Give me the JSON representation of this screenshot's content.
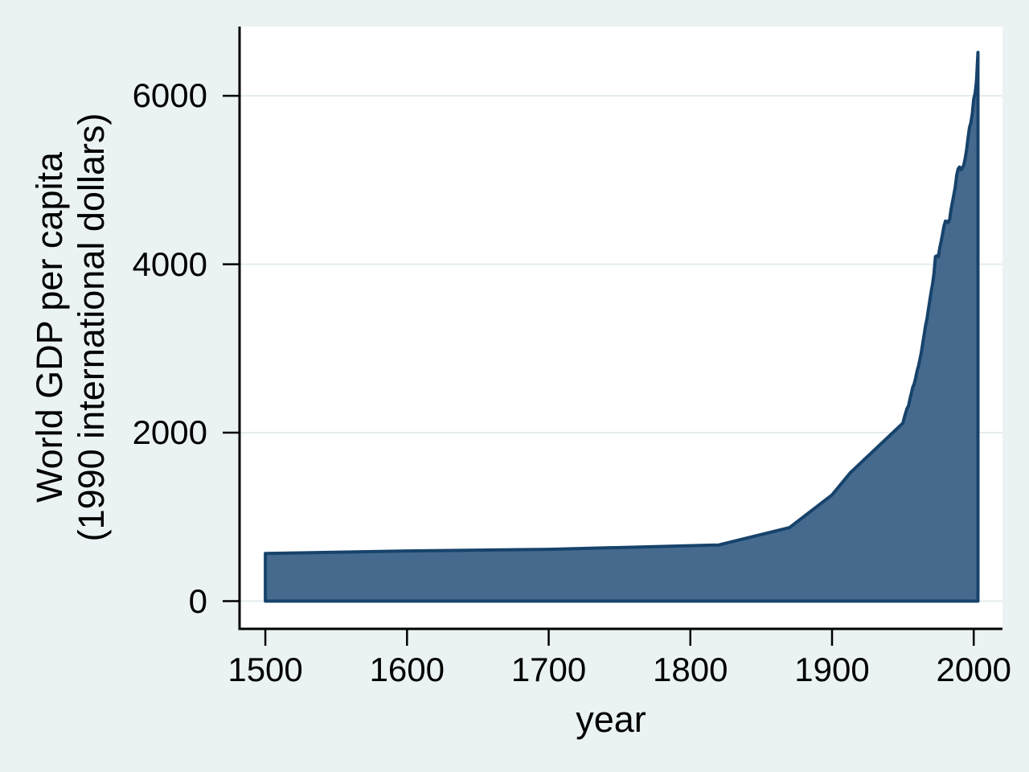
{
  "chart_data": {
    "type": "area",
    "title": "",
    "xlabel": "year",
    "ylabel_line1": "World GDP per capita",
    "ylabel_line2": "(1990 international dollars)",
    "series_name": "World GDP per capita (1990 international dollars)",
    "xlim": [
      1481.8,
      2020.3
    ],
    "ylim": [
      -329,
      6822
    ],
    "xticks": [
      1500,
      1600,
      1700,
      1800,
      1900,
      2000
    ],
    "yticks": [
      0,
      2000,
      4000,
      6000
    ],
    "grid": true,
    "legend": "none",
    "baseline": 0,
    "points": [
      [
        1500,
        566
      ],
      [
        1600,
        596
      ],
      [
        1700,
        615
      ],
      [
        1820,
        667
      ],
      [
        1870,
        873
      ],
      [
        1900,
        1262
      ],
      [
        1913,
        1526
      ],
      [
        1950,
        2113
      ],
      [
        1951,
        2180
      ],
      [
        1952,
        2235
      ],
      [
        1953,
        2290
      ],
      [
        1954,
        2320
      ],
      [
        1955,
        2400
      ],
      [
        1956,
        2470
      ],
      [
        1957,
        2540
      ],
      [
        1958,
        2580
      ],
      [
        1959,
        2650
      ],
      [
        1960,
        2730
      ],
      [
        1961,
        2790
      ],
      [
        1962,
        2870
      ],
      [
        1963,
        2950
      ],
      [
        1964,
        3060
      ],
      [
        1965,
        3160
      ],
      [
        1966,
        3270
      ],
      [
        1967,
        3350
      ],
      [
        1968,
        3460
      ],
      [
        1969,
        3570
      ],
      [
        1970,
        3680
      ],
      [
        1971,
        3770
      ],
      [
        1972,
        3900
      ],
      [
        1973,
        4091
      ],
      [
        1974,
        4100
      ],
      [
        1975,
        4088
      ],
      [
        1976,
        4190
      ],
      [
        1977,
        4270
      ],
      [
        1978,
        4360
      ],
      [
        1979,
        4450
      ],
      [
        1980,
        4512
      ],
      [
        1981,
        4510
      ],
      [
        1982,
        4494
      ],
      [
        1983,
        4532
      ],
      [
        1984,
        4650
      ],
      [
        1985,
        4740
      ],
      [
        1986,
        4830
      ],
      [
        1987,
        4920
      ],
      [
        1988,
        5060
      ],
      [
        1989,
        5130
      ],
      [
        1990,
        5154
      ],
      [
        1991,
        5123
      ],
      [
        1992,
        5141
      ],
      [
        1993,
        5180
      ],
      [
        1994,
        5260
      ],
      [
        1995,
        5360
      ],
      [
        1996,
        5500
      ],
      [
        1997,
        5620
      ],
      [
        1998,
        5680
      ],
      [
        1999,
        5790
      ],
      [
        2000,
        5960
      ],
      [
        2001,
        6030
      ],
      [
        2002,
        6180
      ],
      [
        2003,
        6516
      ]
    ],
    "colors": {
      "background": "#eaf2f3",
      "plot_background": "#ffffff",
      "grid": "#e3edef",
      "axis": "#000000",
      "text": "#000000",
      "area_fill": "#456a8e",
      "area_stroke": "#17436b"
    }
  }
}
